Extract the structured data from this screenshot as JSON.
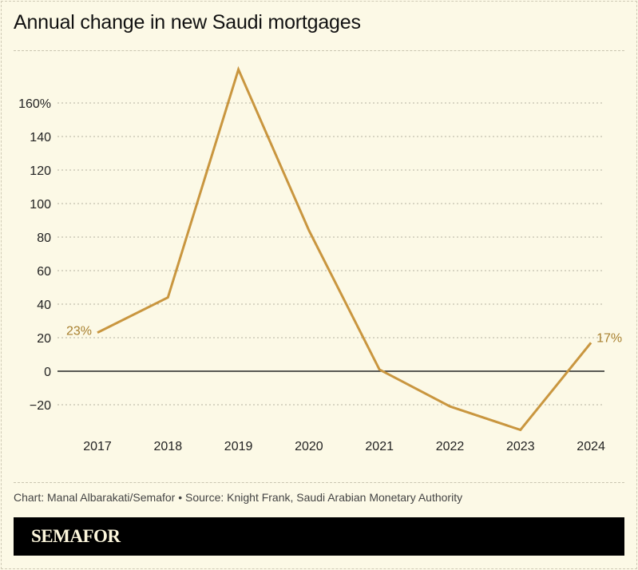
{
  "title": "Annual change in new Saudi mortgages",
  "source": "Chart: Manal Albarakati/Semafor • Source: Knight Frank, Saudi Arabian Monetary Authority",
  "brand": "SEMAFOR",
  "colors": {
    "line": "#c9963f",
    "background": "#fcf9e6",
    "label": "#a8802f"
  },
  "chart_data": {
    "type": "line",
    "title": "Annual change in new Saudi mortgages",
    "x": [
      "2017",
      "2018",
      "2019",
      "2020",
      "2021",
      "2022",
      "2023",
      "2024"
    ],
    "values": [
      23,
      44,
      180,
      84,
      1,
      -21,
      -35,
      17
    ],
    "ylim": [
      -35,
      180
    ],
    "yticks": [
      -20,
      0,
      20,
      40,
      60,
      80,
      100,
      120,
      140,
      160
    ],
    "ytick_labels": [
      "−20",
      "0",
      "20",
      "40",
      "60",
      "80",
      "100",
      "120",
      "140",
      "160%"
    ],
    "annotations": [
      {
        "x": "2017",
        "text": "23%"
      },
      {
        "x": "2024",
        "text": "17%"
      }
    ],
    "grid": true
  }
}
